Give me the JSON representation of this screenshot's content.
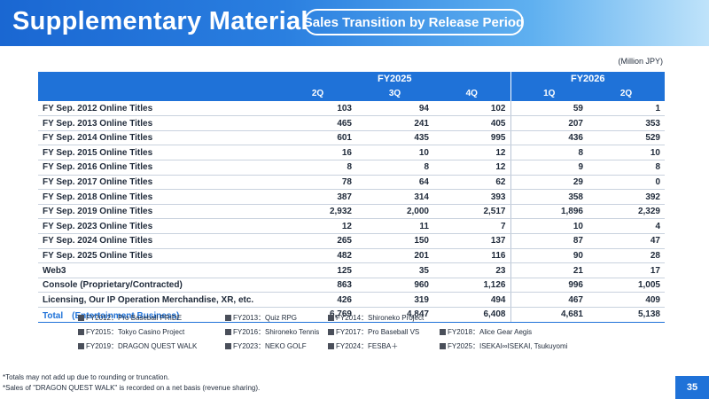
{
  "header": {
    "title": "Supplementary Material",
    "subtitle": "Sales Transition by Release Period"
  },
  "unit": "(Million JPY)",
  "table": {
    "fy_groups": [
      "FY2025",
      "FY2026"
    ],
    "quarters": [
      "2Q",
      "3Q",
      "4Q",
      "1Q",
      "2Q"
    ],
    "rows": [
      {
        "label": "FY Sep. 2012 Online Titles",
        "values": [
          "103",
          "94",
          "102",
          "59",
          "1"
        ]
      },
      {
        "label": "FY Sep. 2013 Online Titles",
        "values": [
          "465",
          "241",
          "405",
          "207",
          "353"
        ]
      },
      {
        "label": "FY Sep. 2014 Online Titles",
        "values": [
          "601",
          "435",
          "995",
          "436",
          "529"
        ]
      },
      {
        "label": "FY Sep. 2015 Online Titles",
        "values": [
          "16",
          "10",
          "12",
          "8",
          "10"
        ]
      },
      {
        "label": "FY Sep. 2016 Online Titles",
        "values": [
          "8",
          "8",
          "12",
          "9",
          "8"
        ]
      },
      {
        "label": "FY Sep. 2017 Online Titles",
        "values": [
          "78",
          "64",
          "62",
          "29",
          "0"
        ]
      },
      {
        "label": "FY Sep. 2018 Online Titles",
        "values": [
          "387",
          "314",
          "393",
          "358",
          "392"
        ]
      },
      {
        "label": "FY Sep. 2019 Online Titles",
        "values": [
          "2,932",
          "2,000",
          "2,517",
          "1,896",
          "2,329"
        ]
      },
      {
        "label": "FY Sep. 2023 Online Titles",
        "values": [
          "12",
          "11",
          "7",
          "10",
          "4"
        ]
      },
      {
        "label": "FY Sep. 2024 Online Titles",
        "values": [
          "265",
          "150",
          "137",
          "87",
          "47"
        ]
      },
      {
        "label": "FY Sep. 2025 Online Titles",
        "values": [
          "482",
          "201",
          "116",
          "90",
          "28"
        ]
      },
      {
        "label": "Web3",
        "values": [
          "125",
          "35",
          "23",
          "21",
          "17"
        ]
      },
      {
        "label": "Console (Proprietary/Contracted)",
        "values": [
          "863",
          "960",
          "1,126",
          "996",
          "1,005"
        ]
      },
      {
        "label": "Licensing, Our IP Operation Merchandise, XR, etc.",
        "values": [
          "426",
          "319",
          "494",
          "467",
          "409"
        ]
      }
    ],
    "total": {
      "label": "Total　(Entertainment Business)",
      "values": [
        "6,769",
        "4,847",
        "6,408",
        "4,681",
        "5,138"
      ]
    }
  },
  "legend": [
    [
      "FY2012：Pro Baseball PRIDE",
      "FY2013：Quiz RPG",
      "FY2014：Shironeko Project"
    ],
    [
      "FY2015：Tokyo Casino Project",
      "FY2016：Shironeko Tennis",
      "FY2017：Pro Baseball VS",
      "FY2018：Alice Gear Aegis"
    ],
    [
      "FY2019：DRAGON QUEST WALK",
      "FY2023：NEKO GOLF",
      "FY2024：FESBA＋",
      "FY2025：ISEKAI∞ISEKAI, Tsukuyomi"
    ]
  ],
  "notes": [
    "*Totals may not add up due to rounding or truncation.",
    "*Sales of \"DRAGON QUEST WALK\" is recorded on a net basis (revenue sharing)."
  ],
  "page_number": "35",
  "colors": {
    "accent": "#1f72d8",
    "header_start": "#1a67d2",
    "header_end": "#bfe3fa"
  }
}
